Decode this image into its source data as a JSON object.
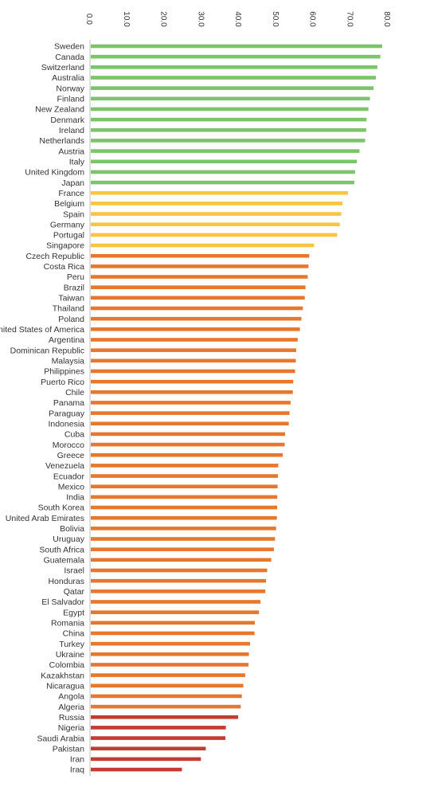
{
  "chart_data": {
    "type": "bar",
    "orientation": "horizontal",
    "title": "",
    "xlabel": "",
    "ylabel": "",
    "xlim": [
      0,
      80
    ],
    "x_ticks": [
      "0.0",
      "10.0",
      "20.0",
      "30.0",
      "40.0",
      "50.0",
      "60.0",
      "70.0",
      "80.0"
    ],
    "grid": false,
    "colors": {
      "green": "#7dc36b",
      "yellow": "#f7c53f",
      "orange": "#e8772e",
      "red": "#c43b32"
    },
    "bars": [
      {
        "label": "Sweden",
        "value": 78.5,
        "color": "green"
      },
      {
        "label": "Canada",
        "value": 78.0,
        "color": "green"
      },
      {
        "label": "Switzerland",
        "value": 77.2,
        "color": "green"
      },
      {
        "label": "Australia",
        "value": 76.8,
        "color": "green"
      },
      {
        "label": "Norway",
        "value": 76.2,
        "color": "green"
      },
      {
        "label": "Finland",
        "value": 75.2,
        "color": "green"
      },
      {
        "label": "New Zealand",
        "value": 74.8,
        "color": "green"
      },
      {
        "label": "Denmark",
        "value": 74.3,
        "color": "green"
      },
      {
        "label": "Ireland",
        "value": 74.2,
        "color": "green"
      },
      {
        "label": "Netherlands",
        "value": 73.9,
        "color": "green"
      },
      {
        "label": "Austria",
        "value": 72.4,
        "color": "green"
      },
      {
        "label": "Italy",
        "value": 71.7,
        "color": "green"
      },
      {
        "label": "United Kingdom",
        "value": 71.2,
        "color": "green"
      },
      {
        "label": "Japan",
        "value": 71.0,
        "color": "green"
      },
      {
        "label": "France",
        "value": 69.3,
        "color": "yellow"
      },
      {
        "label": "Belgium",
        "value": 67.8,
        "color": "yellow"
      },
      {
        "label": "Spain",
        "value": 67.5,
        "color": "yellow"
      },
      {
        "label": "Germany",
        "value": 67.1,
        "color": "yellow"
      },
      {
        "label": "Portugal",
        "value": 66.4,
        "color": "yellow"
      },
      {
        "label": "Singapore",
        "value": 60.2,
        "color": "yellow"
      },
      {
        "label": "Czech Republic",
        "value": 58.9,
        "color": "orange"
      },
      {
        "label": "Costa Rica",
        "value": 58.7,
        "color": "orange"
      },
      {
        "label": "Peru",
        "value": 58.5,
        "color": "orange"
      },
      {
        "label": "Brazil",
        "value": 57.9,
        "color": "orange"
      },
      {
        "label": "Taiwan",
        "value": 57.7,
        "color": "orange"
      },
      {
        "label": "Thailand",
        "value": 57.2,
        "color": "orange"
      },
      {
        "label": "Poland",
        "value": 56.8,
        "color": "orange"
      },
      {
        "label": "United States of America",
        "value": 56.4,
        "color": "orange"
      },
      {
        "label": "Argentina",
        "value": 55.8,
        "color": "orange"
      },
      {
        "label": "Dominican Republic",
        "value": 55.4,
        "color": "orange"
      },
      {
        "label": "Malaysia",
        "value": 55.3,
        "color": "orange"
      },
      {
        "label": "Philippines",
        "value": 55.1,
        "color": "orange"
      },
      {
        "label": "Puerto Rico",
        "value": 54.6,
        "color": "orange"
      },
      {
        "label": "Chile",
        "value": 54.5,
        "color": "orange"
      },
      {
        "label": "Panama",
        "value": 53.9,
        "color": "orange"
      },
      {
        "label": "Paraguay",
        "value": 53.6,
        "color": "orange"
      },
      {
        "label": "Indonesia",
        "value": 53.4,
        "color": "orange"
      },
      {
        "label": "Cuba",
        "value": 52.4,
        "color": "orange"
      },
      {
        "label": "Morocco",
        "value": 52.3,
        "color": "orange"
      },
      {
        "label": "Greece",
        "value": 51.8,
        "color": "orange"
      },
      {
        "label": "Venezuela",
        "value": 50.6,
        "color": "orange"
      },
      {
        "label": "Ecuador",
        "value": 50.5,
        "color": "orange"
      },
      {
        "label": "Mexico",
        "value": 50.4,
        "color": "orange"
      },
      {
        "label": "India",
        "value": 50.3,
        "color": "orange"
      },
      {
        "label": "South Korea",
        "value": 50.3,
        "color": "orange"
      },
      {
        "label": "United Arab Emirates",
        "value": 50.2,
        "color": "orange"
      },
      {
        "label": "Bolivia",
        "value": 50.0,
        "color": "orange"
      },
      {
        "label": "Uruguay",
        "value": 49.7,
        "color": "orange"
      },
      {
        "label": "South Africa",
        "value": 49.4,
        "color": "orange"
      },
      {
        "label": "Guatemala",
        "value": 48.7,
        "color": "orange"
      },
      {
        "label": "Israel",
        "value": 47.6,
        "color": "orange"
      },
      {
        "label": "Honduras",
        "value": 47.3,
        "color": "orange"
      },
      {
        "label": "Qatar",
        "value": 47.1,
        "color": "orange"
      },
      {
        "label": "El Salvador",
        "value": 45.8,
        "color": "orange"
      },
      {
        "label": "Egypt",
        "value": 45.4,
        "color": "orange"
      },
      {
        "label": "Romania",
        "value": 44.3,
        "color": "orange"
      },
      {
        "label": "China",
        "value": 44.2,
        "color": "orange"
      },
      {
        "label": "Turkey",
        "value": 43.0,
        "color": "orange"
      },
      {
        "label": "Ukraine",
        "value": 42.7,
        "color": "orange"
      },
      {
        "label": "Colombia",
        "value": 42.6,
        "color": "orange"
      },
      {
        "label": "Kazakhstan",
        "value": 41.7,
        "color": "orange"
      },
      {
        "label": "Nicaragua",
        "value": 41.2,
        "color": "orange"
      },
      {
        "label": "Angola",
        "value": 40.8,
        "color": "orange"
      },
      {
        "label": "Algeria",
        "value": 40.5,
        "color": "orange"
      },
      {
        "label": "Russia",
        "value": 39.8,
        "color": "red"
      },
      {
        "label": "Nigeria",
        "value": 36.5,
        "color": "red"
      },
      {
        "label": "Saudi Arabia",
        "value": 36.4,
        "color": "red"
      },
      {
        "label": "Pakistan",
        "value": 31.1,
        "color": "red"
      },
      {
        "label": "Iran",
        "value": 29.8,
        "color": "red"
      },
      {
        "label": "Iraq",
        "value": 24.7,
        "color": "red"
      }
    ]
  }
}
